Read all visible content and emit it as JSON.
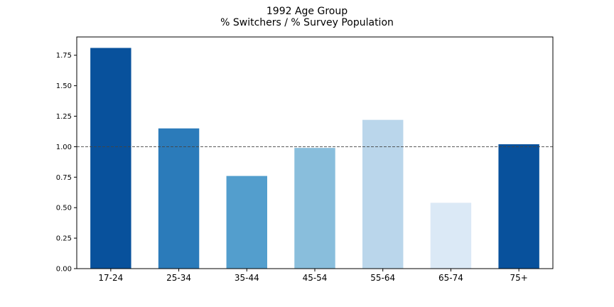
{
  "chart_data": {
    "type": "bar",
    "title": "1992 Age Group",
    "subtitle": "% Switchers / % Survey Population",
    "categories": [
      "17-24",
      "25-34",
      "35-44",
      "45-54",
      "55-64",
      "65-74",
      "75+"
    ],
    "values": [
      1.81,
      1.15,
      0.76,
      0.99,
      1.22,
      0.54,
      1.02
    ],
    "colors": [
      "#08519c",
      "#2b7bba",
      "#539ecd",
      "#89bedc",
      "#bad6eb",
      "#dbe9f6",
      "#08519c"
    ],
    "ylim": [
      0,
      1.9
    ],
    "yticks": [
      "0.00",
      "0.25",
      "0.50",
      "0.75",
      "1.00",
      "1.25",
      "1.50",
      "1.75"
    ],
    "reference_line": {
      "value": 1.0,
      "style": "dashed"
    },
    "grid": false,
    "legend": "none"
  }
}
